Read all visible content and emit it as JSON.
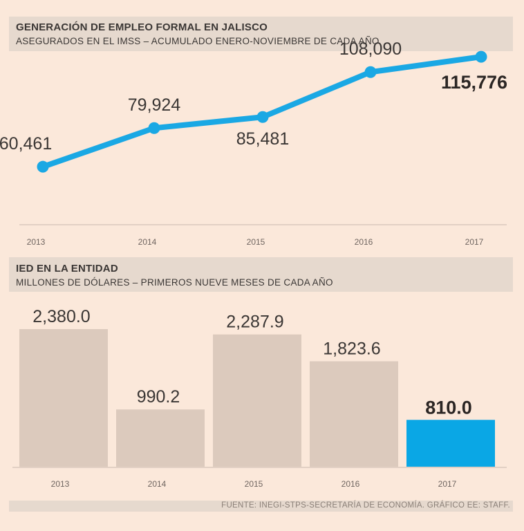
{
  "chart_data": [
    {
      "type": "line",
      "title": "GENERACIÓN DE EMPLEO FORMAL EN JALISCO",
      "subtitle": "ASEGURADOS EN EL IMSS – ACUMULADO ENERO-NOVIEMBRE DE CADA AÑO",
      "categories": [
        "2013",
        "2014",
        "2015",
        "2016",
        "2017"
      ],
      "values": [
        60461,
        79924,
        85481,
        108090,
        115776
      ],
      "labels": [
        "60,461",
        "79,924",
        "85,481",
        "108,090",
        "115,776"
      ],
      "highlight_index": 4,
      "series_color": "#1aa8e4",
      "ylim": [
        40000,
        120000
      ]
    },
    {
      "type": "bar",
      "title": "IED EN LA ENTIDAD",
      "subtitle": "MILLONES DE DÓLARES – PRIMEROS NUEVE MESES DE CADA AÑO",
      "categories": [
        "2013",
        "2014",
        "2015",
        "2016",
        "2017"
      ],
      "values": [
        2380.0,
        990.2,
        2287.9,
        1823.6,
        810.0
      ],
      "labels": [
        "2,380.0",
        "990.2",
        "2,287.9",
        "1,823.6",
        "810.0"
      ],
      "highlight_index": 4,
      "bar_color": "#dccabd",
      "highlight_color": "#0aa7e5",
      "ylim": [
        0,
        2600
      ]
    }
  ],
  "source": "FUENTE: INEGI-STPS-SECRETARÍA DE ECONOMÍA. GRÁFICO EE: STAFF."
}
